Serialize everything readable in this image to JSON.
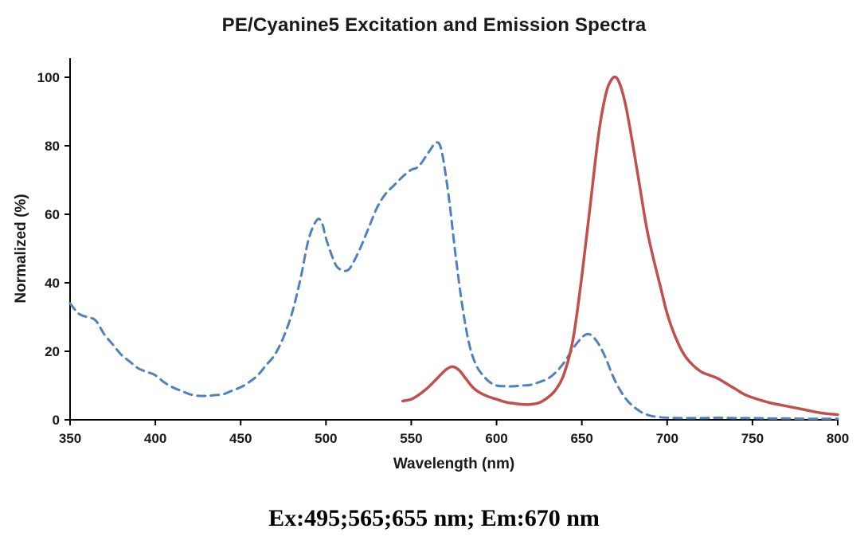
{
  "title": "PE/Cyanine5 Excitation and Emission Spectra",
  "caption": "Ex:495;565;655 nm; Em:670 nm",
  "chart_data": {
    "type": "line",
    "title": "PE/Cyanine5 Excitation and Emission Spectra",
    "xlabel": "Wavelength (nm)",
    "ylabel": "Normalized (%)",
    "xlim": [
      350,
      800
    ],
    "ylim": [
      0,
      100
    ],
    "x_ticks": [
      350,
      400,
      450,
      500,
      550,
      600,
      650,
      700,
      750,
      800
    ],
    "y_ticks": [
      0,
      20,
      40,
      60,
      80,
      100
    ],
    "grid": false,
    "legend_position": "none",
    "axis_color": "#000000",
    "series": [
      {
        "name": "Excitation",
        "style": "dashed",
        "color": "#4f81bd",
        "stroke_width": 3,
        "points": [
          [
            350,
            34
          ],
          [
            355,
            31
          ],
          [
            360,
            30
          ],
          [
            365,
            29
          ],
          [
            370,
            25
          ],
          [
            375,
            22
          ],
          [
            380,
            19
          ],
          [
            385,
            17
          ],
          [
            390,
            15
          ],
          [
            395,
            14
          ],
          [
            400,
            13
          ],
          [
            405,
            11
          ],
          [
            410,
            9.5
          ],
          [
            415,
            8.5
          ],
          [
            420,
            7.5
          ],
          [
            425,
            7
          ],
          [
            430,
            7
          ],
          [
            435,
            7.2
          ],
          [
            440,
            7.5
          ],
          [
            445,
            8.5
          ],
          [
            450,
            9.5
          ],
          [
            455,
            11
          ],
          [
            460,
            13
          ],
          [
            465,
            16
          ],
          [
            470,
            19
          ],
          [
            475,
            24
          ],
          [
            480,
            31
          ],
          [
            485,
            41
          ],
          [
            490,
            53
          ],
          [
            495,
            58.5
          ],
          [
            498,
            57
          ],
          [
            500,
            53
          ],
          [
            505,
            46
          ],
          [
            508,
            44
          ],
          [
            512,
            43.5
          ],
          [
            515,
            45
          ],
          [
            520,
            50
          ],
          [
            525,
            56
          ],
          [
            530,
            62
          ],
          [
            535,
            66
          ],
          [
            540,
            68.5
          ],
          [
            545,
            71
          ],
          [
            550,
            73
          ],
          [
            553,
            73.5
          ],
          [
            556,
            75
          ],
          [
            560,
            78
          ],
          [
            565,
            81
          ],
          [
            568,
            78
          ],
          [
            572,
            65
          ],
          [
            576,
            48
          ],
          [
            580,
            33
          ],
          [
            584,
            22
          ],
          [
            588,
            16
          ],
          [
            592,
            13
          ],
          [
            596,
            11
          ],
          [
            600,
            10
          ],
          [
            605,
            9.8
          ],
          [
            610,
            9.8
          ],
          [
            615,
            10
          ],
          [
            620,
            10.2
          ],
          [
            625,
            11
          ],
          [
            630,
            12
          ],
          [
            635,
            14
          ],
          [
            640,
            17
          ],
          [
            645,
            21
          ],
          [
            650,
            24
          ],
          [
            653,
            25
          ],
          [
            656,
            24.5
          ],
          [
            660,
            22
          ],
          [
            664,
            18
          ],
          [
            668,
            13
          ],
          [
            672,
            9
          ],
          [
            676,
            6
          ],
          [
            680,
            4
          ],
          [
            685,
            2.2
          ],
          [
            690,
            1.2
          ],
          [
            695,
            0.8
          ],
          [
            700,
            0.6
          ],
          [
            710,
            0.5
          ],
          [
            720,
            0.5
          ],
          [
            730,
            0.6
          ],
          [
            740,
            0.5
          ],
          [
            750,
            0.5
          ],
          [
            760,
            0.4
          ],
          [
            770,
            0.4
          ],
          [
            780,
            0.3
          ],
          [
            790,
            0.3
          ],
          [
            800,
            0.3
          ]
        ]
      },
      {
        "name": "Emission",
        "style": "solid",
        "color": "#c0504d",
        "stroke_width": 3.5,
        "points": [
          [
            545,
            5.5
          ],
          [
            550,
            6
          ],
          [
            555,
            7.5
          ],
          [
            560,
            9.5
          ],
          [
            565,
            12
          ],
          [
            570,
            14.5
          ],
          [
            574,
            15.5
          ],
          [
            578,
            14.5
          ],
          [
            582,
            12
          ],
          [
            586,
            9.5
          ],
          [
            590,
            8
          ],
          [
            595,
            6.8
          ],
          [
            600,
            6
          ],
          [
            605,
            5.2
          ],
          [
            610,
            4.8
          ],
          [
            615,
            4.5
          ],
          [
            620,
            4.5
          ],
          [
            625,
            5
          ],
          [
            630,
            6.5
          ],
          [
            635,
            9
          ],
          [
            640,
            14
          ],
          [
            645,
            24
          ],
          [
            650,
            42
          ],
          [
            655,
            63
          ],
          [
            660,
            84
          ],
          [
            664,
            95
          ],
          [
            667,
            99
          ],
          [
            670,
            100
          ],
          [
            673,
            97
          ],
          [
            676,
            91
          ],
          [
            680,
            80
          ],
          [
            684,
            68
          ],
          [
            688,
            56
          ],
          [
            692,
            47
          ],
          [
            696,
            39
          ],
          [
            700,
            31
          ],
          [
            705,
            24
          ],
          [
            710,
            19
          ],
          [
            715,
            16
          ],
          [
            720,
            14
          ],
          [
            725,
            13
          ],
          [
            730,
            12
          ],
          [
            735,
            10.5
          ],
          [
            740,
            9
          ],
          [
            745,
            7.5
          ],
          [
            750,
            6.5
          ],
          [
            760,
            5
          ],
          [
            770,
            4
          ],
          [
            780,
            3
          ],
          [
            790,
            2
          ],
          [
            800,
            1.5
          ]
        ]
      }
    ]
  }
}
